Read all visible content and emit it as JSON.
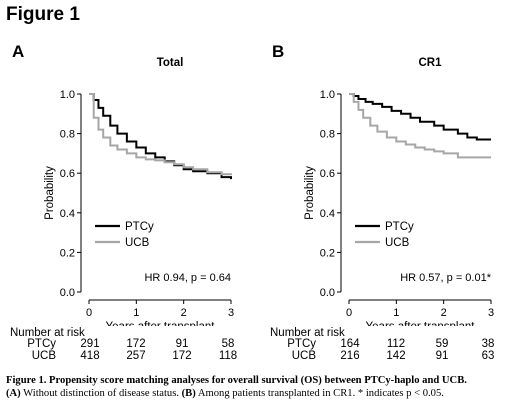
{
  "figure_title": "Figure 1",
  "panels": [
    {
      "letter": "A",
      "title": "Total",
      "annotation": "HR 0.94, p = 0.64",
      "risk_table": {
        "header": "Number at risk",
        "rows": [
          {
            "name": "PTCy",
            "values": [
              "291",
              "172",
              "91",
              "58"
            ]
          },
          {
            "name": "UCB",
            "values": [
              "418",
              "257",
              "172",
              "118"
            ]
          }
        ]
      }
    },
    {
      "letter": "B",
      "title": "CR1",
      "annotation": "HR 0.57, p = 0.01*",
      "risk_table": {
        "header": "Number at risk",
        "rows": [
          {
            "name": "PTCy",
            "values": [
              "164",
              "112",
              "59",
              "38"
            ]
          },
          {
            "name": "UCB",
            "values": [
              "216",
              "142",
              "91",
              "63"
            ]
          }
        ]
      }
    }
  ],
  "caption": {
    "line1": "Figure 1. Propensity score matching analyses for overall survival (OS) between PTCy-haplo and UCB.",
    "a_label": "(A)",
    "a_text": " Without distinction of disease status. ",
    "b_label": "(B)",
    "b_text": " Among patients transplanted in CR1. * indicates p < 0.05."
  },
  "colors": {
    "ptcy": "#000000",
    "ucb": "#a6a6a6"
  },
  "chart_data": [
    {
      "type": "line",
      "title": "Total",
      "xlabel": "Years after transplant",
      "ylabel": "Probability",
      "xlim": [
        0,
        3
      ],
      "ylim": [
        0,
        1
      ],
      "xticks": [
        "0",
        "1",
        "2",
        "3"
      ],
      "yticks": [
        "0.0",
        "0.2",
        "0.4",
        "0.6",
        "0.8",
        "1.0"
      ],
      "legend_position": "bottom-left",
      "annotation": "HR 0.94, p = 0.64",
      "series": [
        {
          "name": "PTCy",
          "color": "#000000",
          "x": [
            0,
            0.1,
            0.2,
            0.3,
            0.45,
            0.6,
            0.8,
            1.0,
            1.2,
            1.4,
            1.6,
            1.8,
            2.0,
            2.2,
            2.5,
            2.8,
            3.0
          ],
          "y": [
            1.0,
            0.97,
            0.93,
            0.89,
            0.84,
            0.8,
            0.76,
            0.73,
            0.7,
            0.68,
            0.66,
            0.64,
            0.62,
            0.61,
            0.6,
            0.58,
            0.57
          ]
        },
        {
          "name": "UCB",
          "color": "#a6a6a6",
          "x": [
            0,
            0.1,
            0.2,
            0.3,
            0.45,
            0.6,
            0.8,
            1.0,
            1.2,
            1.4,
            1.6,
            1.8,
            2.0,
            2.2,
            2.5,
            2.8,
            3.0
          ],
          "y": [
            1.0,
            0.88,
            0.82,
            0.78,
            0.74,
            0.72,
            0.7,
            0.68,
            0.67,
            0.665,
            0.655,
            0.645,
            0.63,
            0.62,
            0.605,
            0.595,
            0.59
          ]
        }
      ]
    },
    {
      "type": "line",
      "title": "CR1",
      "xlabel": "Years after transplant",
      "ylabel": "Probability",
      "xlim": [
        0,
        3
      ],
      "ylim": [
        0,
        1
      ],
      "xticks": [
        "0",
        "1",
        "2",
        "3"
      ],
      "yticks": [
        "0.0",
        "0.2",
        "0.4",
        "0.6",
        "0.8",
        "1.0"
      ],
      "legend_position": "bottom-left",
      "annotation": "HR 0.57, p = 0.01*",
      "series": [
        {
          "name": "PTCy",
          "color": "#000000",
          "x": [
            0,
            0.1,
            0.2,
            0.35,
            0.5,
            0.7,
            0.9,
            1.1,
            1.3,
            1.5,
            1.8,
            2.0,
            2.3,
            2.5,
            2.7,
            3.0
          ],
          "y": [
            1.0,
            0.99,
            0.975,
            0.96,
            0.95,
            0.935,
            0.915,
            0.9,
            0.88,
            0.86,
            0.84,
            0.82,
            0.8,
            0.78,
            0.77,
            0.77
          ]
        },
        {
          "name": "UCB",
          "color": "#a6a6a6",
          "x": [
            0,
            0.1,
            0.2,
            0.3,
            0.45,
            0.6,
            0.8,
            1.0,
            1.2,
            1.4,
            1.6,
            1.8,
            2.0,
            2.3,
            2.6,
            3.0
          ],
          "y": [
            1.0,
            0.96,
            0.92,
            0.88,
            0.84,
            0.81,
            0.78,
            0.76,
            0.745,
            0.73,
            0.72,
            0.71,
            0.7,
            0.68,
            0.68,
            0.68
          ]
        }
      ]
    }
  ]
}
